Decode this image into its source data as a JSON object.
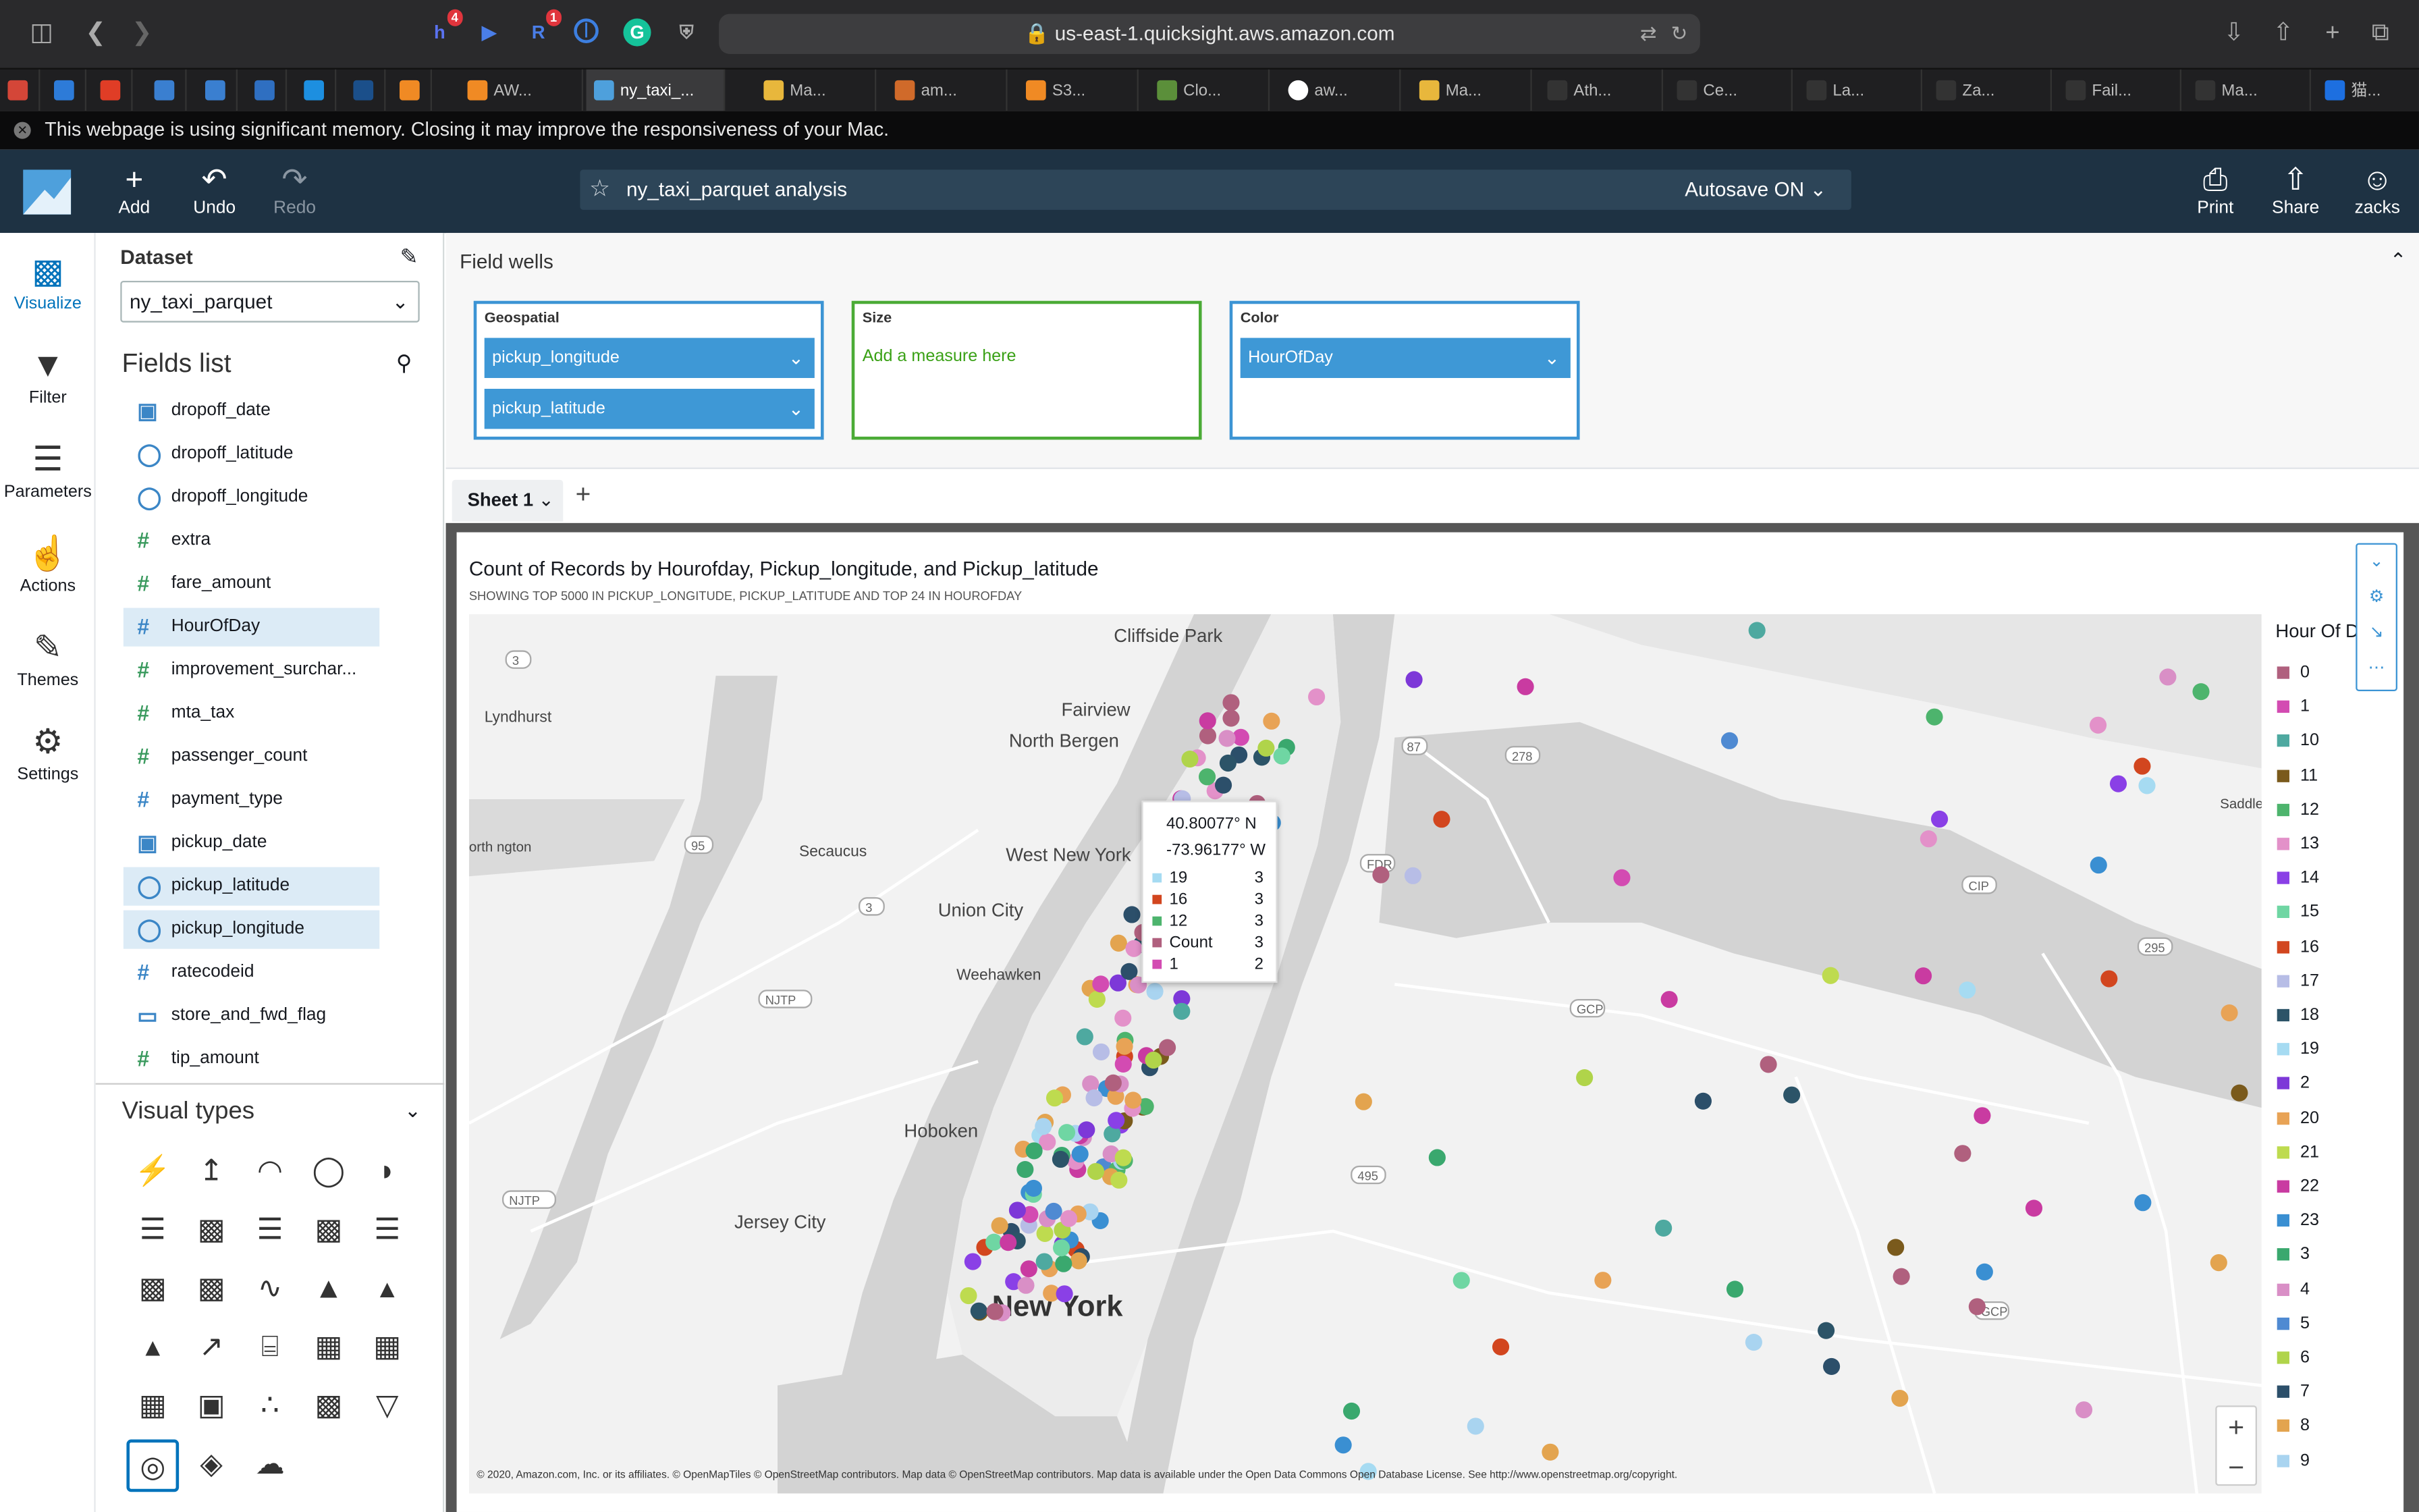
{
  "browser": {
    "url": "us-east-1.quicksight.aws.amazon.com",
    "memory_warning": "This webpage is using significant memory. Closing it may improve the responsiveness of your Mac.",
    "badges": {
      "h": "4",
      "r": "1"
    },
    "tabs": [
      "AW...",
      "ny_taxi_...",
      "Ma...",
      "am...",
      "S3...",
      "Clo...",
      "aw...",
      "Ma...",
      "Ath...",
      "Ce...",
      "La...",
      "Za...",
      "Fail...",
      "Ma...",
      "猫..."
    ]
  },
  "header": {
    "add": "Add",
    "undo": "Undo",
    "redo": "Redo",
    "analysis_title": "ny_taxi_parquet analysis",
    "autosave": "Autosave ON",
    "print": "Print",
    "share": "Share",
    "user": "zacks"
  },
  "iconbar": {
    "visualize": "Visualize",
    "filter": "Filter",
    "parameters": "Parameters",
    "actions": "Actions",
    "themes": "Themes",
    "settings": "Settings"
  },
  "panel": {
    "dataset_label": "Dataset",
    "dataset": "ny_taxi_parquet",
    "fields_title": "Fields list",
    "visual_types": "Visual types",
    "fields": [
      "dropoff_date",
      "dropoff_latitude",
      "dropoff_longitude",
      "extra",
      "fare_amount",
      "HourOfDay",
      "improvement_surchar...",
      "mta_tax",
      "passenger_count",
      "payment_type",
      "pickup_date",
      "pickup_latitude",
      "pickup_longitude",
      "ratecodeid",
      "store_and_fwd_flag",
      "tip_amount"
    ]
  },
  "wells": {
    "title": "Field wells",
    "geo_label": "Geospatial",
    "geo1": "pickup_longitude",
    "geo2": "pickup_latitude",
    "size_label": "Size",
    "size_placeholder": "Add a measure here",
    "color_label": "Color",
    "color_field": "HourOfDay"
  },
  "sheet": {
    "name": "Sheet 1"
  },
  "visual": {
    "title": "Count of Records by Hourofday, Pickup_longitude, and Pickup_latitude",
    "subtitle": "SHOWING TOP 5000 IN PICKUP_LONGITUDE, PICKUP_LATITUDE AND TOP 24 IN HOUROFDAY",
    "legend_title": "Hour Of D",
    "legend": [
      {
        "k": "0",
        "c": "#b0607e"
      },
      {
        "k": "1",
        "c": "#d34bb2"
      },
      {
        "k": "10",
        "c": "#4ea9a0"
      },
      {
        "k": "11",
        "c": "#7a5a1c"
      },
      {
        "k": "12",
        "c": "#4db46d"
      },
      {
        "k": "13",
        "c": "#e391c9"
      },
      {
        "k": "14",
        "c": "#8a40e6"
      },
      {
        "k": "15",
        "c": "#6fd6a3"
      },
      {
        "k": "16",
        "c": "#d2461f"
      },
      {
        "k": "17",
        "c": "#b7bde6"
      },
      {
        "k": "18",
        "c": "#2c5468"
      },
      {
        "k": "19",
        "c": "#a6dbf2"
      },
      {
        "k": "2",
        "c": "#7d38d8"
      },
      {
        "k": "20",
        "c": "#e8a356"
      },
      {
        "k": "21",
        "c": "#bedb4f"
      },
      {
        "k": "22",
        "c": "#c93ba1"
      },
      {
        "k": "23",
        "c": "#3a8fd2"
      },
      {
        "k": "3",
        "c": "#3aa86e"
      },
      {
        "k": "4",
        "c": "#d98fc6"
      },
      {
        "k": "5",
        "c": "#4f8ad2"
      },
      {
        "k": "6",
        "c": "#b0d44a"
      },
      {
        "k": "7",
        "c": "#2c4f6a"
      },
      {
        "k": "8",
        "c": "#e3a44f"
      },
      {
        "k": "9",
        "c": "#a9d4f0"
      }
    ],
    "tooltip": {
      "lat": "40.80077° N",
      "lon": "-73.96177° W",
      "rows": [
        {
          "k": "19",
          "v": "3",
          "c": "#a6dbf2"
        },
        {
          "k": "16",
          "v": "3",
          "c": "#d2461f"
        },
        {
          "k": "12",
          "v": "3",
          "c": "#4db46d"
        },
        {
          "k": "Count",
          "v": "3",
          "c": "#b0607e"
        },
        {
          "k": "1",
          "v": "2",
          "c": "#d34bb2"
        }
      ]
    },
    "map_labels": [
      "Cliffside Park",
      "Fairview",
      "North Bergen",
      "West New York",
      "Union City",
      "Secaucus",
      "Weehawken",
      "Hoboken",
      "Jersey City",
      "New York",
      "Lyndhurst",
      "orth ngton",
      "Saddle Rock"
    ],
    "copyright": "© 2020, Amazon.com, Inc. or its affiliates. © OpenMapTiles © OpenStreetMap contributors. Map data © OpenStreetMap contributors. Map data is available under the Open Data Commons Open Database License. See http://www.openstreetmap.org/copyright."
  }
}
